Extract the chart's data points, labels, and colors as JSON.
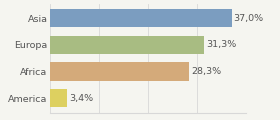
{
  "categories": [
    "Asia",
    "Europa",
    "Africa",
    "America"
  ],
  "values": [
    37.0,
    31.3,
    28.3,
    3.4
  ],
  "bar_colors": [
    "#7b9dc0",
    "#a8bc82",
    "#d4aa7a",
    "#ddd060"
  ],
  "labels": [
    "37,0%",
    "31,3%",
    "28,3%",
    "3,4%"
  ],
  "xlim": [
    0,
    40
  ],
  "background_color": "#f5f5f0",
  "bar_height": 0.68,
  "label_fontsize": 6.8,
  "tick_fontsize": 6.8,
  "grid_color": "#d8d8d8",
  "grid_xticks": [
    0,
    10,
    20,
    30,
    40
  ]
}
